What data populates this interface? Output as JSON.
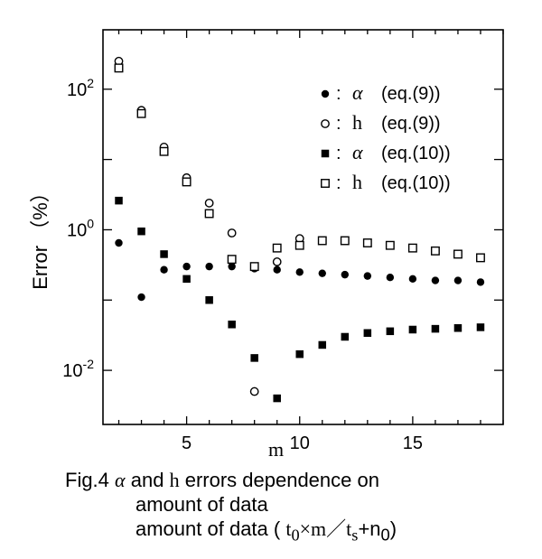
{
  "chart_data": {
    "type": "scatter",
    "title": "",
    "xlabel": "m",
    "ylabel": "Error （%）",
    "y_scale": "log",
    "xlim": [
      1.3,
      19.0
    ],
    "ylim": [
      0.0017,
      700
    ],
    "x_ticks": [
      5,
      10,
      15
    ],
    "x_tick_labels": [
      "5",
      "10",
      "15"
    ],
    "y_ticks": [
      0.01,
      1,
      100
    ],
    "y_tick_labels": [
      {
        "base": "10",
        "exp": "-2"
      },
      {
        "base": "10",
        "exp": "0"
      },
      {
        "base": "10",
        "exp": "2"
      }
    ],
    "grid": false,
    "legend_position": "top-right",
    "legend": [
      {
        "sym": "●",
        "sep": ":",
        "param": "α",
        "eq": "(eq.(9))"
      },
      {
        "sym": "○",
        "sep": ":",
        "param": "h",
        "eq": "(eq.(9))"
      },
      {
        "sym": "■",
        "sep": ":",
        "param": "α",
        "eq": "(eq.(10))"
      },
      {
        "sym": "□",
        "sep": ":",
        "param": "h",
        "eq": "(eq.(10))"
      }
    ],
    "series": [
      {
        "marker": "filled-circle",
        "points": [
          [
            2,
            0.65
          ],
          [
            3,
            0.11
          ],
          [
            4,
            0.27
          ],
          [
            5,
            0.3
          ],
          [
            6,
            0.3
          ],
          [
            7,
            0.3
          ],
          [
            8,
            0.28
          ],
          [
            9,
            0.27
          ],
          [
            10,
            0.25
          ],
          [
            11,
            0.24
          ],
          [
            12,
            0.23
          ],
          [
            13,
            0.22
          ],
          [
            14,
            0.21
          ],
          [
            15,
            0.2
          ],
          [
            16,
            0.19
          ],
          [
            17,
            0.19
          ],
          [
            18,
            0.18
          ]
        ]
      },
      {
        "marker": "open-circle",
        "points": [
          [
            2,
            250
          ],
          [
            3,
            50
          ],
          [
            4,
            15
          ],
          [
            5,
            5.5
          ],
          [
            6,
            2.4
          ],
          [
            7,
            0.9
          ],
          [
            8,
            0.005
          ],
          [
            9,
            0.35
          ],
          [
            10,
            0.75
          ]
        ]
      },
      {
        "marker": "filled-square",
        "points": [
          [
            2,
            2.6
          ],
          [
            3,
            0.95
          ],
          [
            4,
            0.45
          ],
          [
            5,
            0.2
          ],
          [
            6,
            0.1
          ],
          [
            7,
            0.045
          ],
          [
            8,
            0.015
          ],
          [
            9,
            0.004
          ],
          [
            10,
            0.017
          ],
          [
            11,
            0.023
          ],
          [
            12,
            0.03
          ],
          [
            13,
            0.034
          ],
          [
            14,
            0.036
          ],
          [
            15,
            0.038
          ],
          [
            16,
            0.039
          ],
          [
            17,
            0.04
          ],
          [
            18,
            0.041
          ]
        ]
      },
      {
        "marker": "open-square",
        "points": [
          [
            2,
            200
          ],
          [
            3,
            45
          ],
          [
            4,
            13
          ],
          [
            5,
            4.8
          ],
          [
            6,
            1.7
          ],
          [
            7,
            0.38
          ],
          [
            8,
            0.3
          ],
          [
            9,
            0.55
          ],
          [
            10,
            0.6
          ],
          [
            11,
            0.7
          ],
          [
            12,
            0.7
          ],
          [
            13,
            0.65
          ],
          [
            14,
            0.6
          ],
          [
            15,
            0.55
          ],
          [
            16,
            0.5
          ],
          [
            17,
            0.45
          ],
          [
            18,
            0.4
          ]
        ]
      }
    ],
    "colors": {
      "ink": "#000000",
      "background": "#ffffff"
    }
  },
  "caption": {
    "prefix": "Fig.4",
    "alpha": "α",
    "and": "and",
    "h": "h",
    "rest": "errors dependence on",
    "line2": "amount of data",
    "line3_text": "amount of data (",
    "t0": "t",
    "t0_sub": "0",
    "times_m": "×m／",
    "ts": "t",
    "ts_sub": "s",
    "plus": "+n",
    "n_sub": "0",
    "close": ")"
  }
}
